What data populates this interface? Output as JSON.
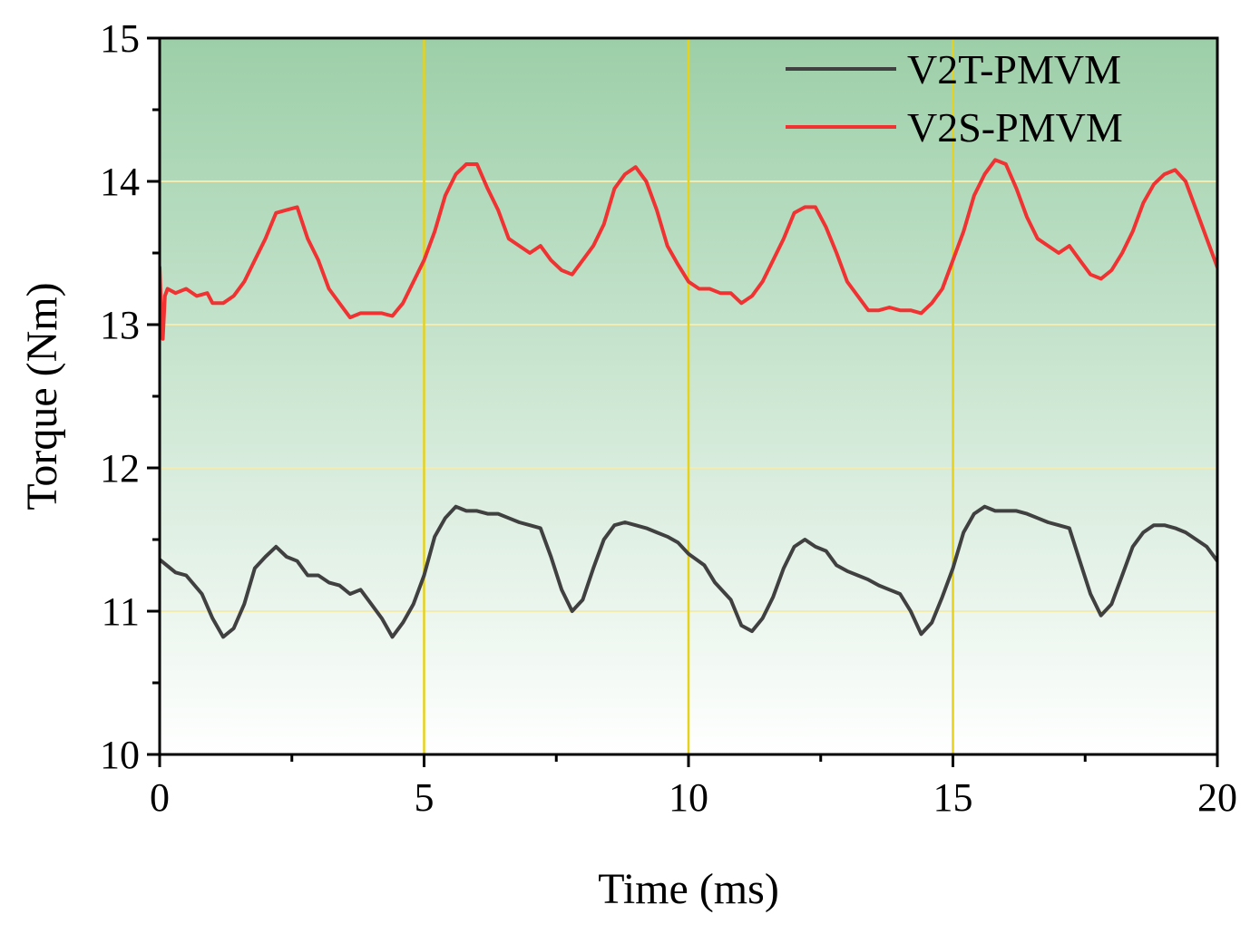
{
  "chart_data": {
    "type": "line",
    "title": "",
    "xlabel": "Time (ms)",
    "ylabel": "Torque (Nm)",
    "xlim": [
      0,
      20
    ],
    "ylim": [
      10,
      15
    ],
    "xticks": [
      0,
      5,
      10,
      15,
      20
    ],
    "yticks": [
      10,
      11,
      12,
      13,
      14,
      15
    ],
    "grid": true,
    "legend": "top-right",
    "colors": {
      "background_top": "#9ccfa8",
      "background_bottom": "#ffffff",
      "gridline_vertical": "#e6d21a",
      "gridline_horizontal": "#f2ecb0"
    },
    "series": [
      {
        "name": "V2T-PMVM",
        "color": "#404040",
        "x": [
          0,
          0.3,
          0.5,
          0.8,
          1.0,
          1.2,
          1.4,
          1.6,
          1.8,
          2.0,
          2.2,
          2.4,
          2.6,
          2.8,
          3.0,
          3.2,
          3.4,
          3.6,
          3.8,
          4.0,
          4.2,
          4.4,
          4.6,
          4.8,
          5.0,
          5.2,
          5.4,
          5.6,
          5.8,
          6.0,
          6.2,
          6.4,
          6.6,
          6.8,
          7.0,
          7.2,
          7.4,
          7.6,
          7.8,
          8.0,
          8.2,
          8.4,
          8.6,
          8.8,
          9.0,
          9.2,
          9.4,
          9.6,
          9.8,
          10.0,
          10.3,
          10.5,
          10.8,
          11.0,
          11.2,
          11.4,
          11.6,
          11.8,
          12.0,
          12.2,
          12.4,
          12.6,
          12.8,
          13.0,
          13.2,
          13.4,
          13.6,
          13.8,
          14.0,
          14.2,
          14.4,
          14.6,
          14.8,
          15.0,
          15.2,
          15.4,
          15.6,
          15.8,
          16.0,
          16.2,
          16.4,
          16.6,
          16.8,
          17.0,
          17.2,
          17.4,
          17.6,
          17.8,
          18.0,
          18.2,
          18.4,
          18.6,
          18.8,
          19.0,
          19.2,
          19.4,
          19.6,
          19.8,
          20.0
        ],
        "values": [
          11.36,
          11.27,
          11.25,
          11.12,
          10.95,
          10.82,
          10.88,
          11.05,
          11.3,
          11.38,
          11.45,
          11.38,
          11.35,
          11.25,
          11.25,
          11.2,
          11.18,
          11.12,
          11.15,
          11.05,
          10.95,
          10.82,
          10.92,
          11.05,
          11.25,
          11.52,
          11.65,
          11.73,
          11.7,
          11.7,
          11.68,
          11.68,
          11.65,
          11.62,
          11.6,
          11.58,
          11.38,
          11.15,
          11.0,
          11.08,
          11.3,
          11.5,
          11.6,
          11.62,
          11.6,
          11.58,
          11.55,
          11.52,
          11.48,
          11.4,
          11.32,
          11.2,
          11.08,
          10.9,
          10.86,
          10.95,
          11.1,
          11.3,
          11.45,
          11.5,
          11.45,
          11.42,
          11.32,
          11.28,
          11.25,
          11.22,
          11.18,
          11.15,
          11.12,
          11.0,
          10.84,
          10.92,
          11.1,
          11.3,
          11.55,
          11.68,
          11.73,
          11.7,
          11.7,
          11.7,
          11.68,
          11.65,
          11.62,
          11.6,
          11.58,
          11.35,
          11.12,
          10.97,
          11.05,
          11.25,
          11.45,
          11.55,
          11.6,
          11.6,
          11.58,
          11.55,
          11.5,
          11.45,
          11.35
        ]
      },
      {
        "name": "V2S-PMVM",
        "color": "#f03232",
        "x": [
          0,
          0.03,
          0.06,
          0.1,
          0.15,
          0.3,
          0.5,
          0.7,
          0.9,
          1.0,
          1.2,
          1.4,
          1.6,
          1.8,
          2.0,
          2.2,
          2.4,
          2.6,
          2.8,
          3.0,
          3.2,
          3.4,
          3.6,
          3.8,
          4.0,
          4.2,
          4.4,
          4.6,
          4.8,
          5.0,
          5.2,
          5.4,
          5.6,
          5.8,
          6.0,
          6.2,
          6.4,
          6.6,
          6.8,
          7.0,
          7.2,
          7.4,
          7.6,
          7.8,
          8.0,
          8.2,
          8.4,
          8.6,
          8.8,
          9.0,
          9.2,
          9.4,
          9.6,
          9.8,
          10.0,
          10.2,
          10.4,
          10.6,
          10.8,
          11.0,
          11.2,
          11.4,
          11.6,
          11.8,
          12.0,
          12.2,
          12.4,
          12.6,
          12.8,
          13.0,
          13.2,
          13.4,
          13.6,
          13.8,
          14.0,
          14.2,
          14.4,
          14.6,
          14.8,
          15.0,
          15.2,
          15.4,
          15.6,
          15.8,
          16.0,
          16.2,
          16.4,
          16.6,
          16.8,
          17.0,
          17.2,
          17.4,
          17.6,
          17.8,
          18.0,
          18.2,
          18.4,
          18.6,
          18.8,
          19.0,
          19.2,
          19.4,
          19.6,
          19.8,
          20.0
        ],
        "values": [
          13.4,
          13.1,
          12.9,
          13.2,
          13.25,
          13.22,
          13.25,
          13.2,
          13.22,
          13.15,
          13.15,
          13.2,
          13.3,
          13.45,
          13.6,
          13.78,
          13.8,
          13.82,
          13.6,
          13.45,
          13.25,
          13.15,
          13.05,
          13.08,
          13.08,
          13.08,
          13.06,
          13.15,
          13.3,
          13.45,
          13.65,
          13.9,
          14.05,
          14.12,
          14.12,
          13.95,
          13.8,
          13.6,
          13.55,
          13.5,
          13.55,
          13.45,
          13.38,
          13.35,
          13.45,
          13.55,
          13.7,
          13.95,
          14.05,
          14.1,
          14.0,
          13.8,
          13.55,
          13.42,
          13.3,
          13.25,
          13.25,
          13.22,
          13.22,
          13.15,
          13.2,
          13.3,
          13.45,
          13.6,
          13.78,
          13.82,
          13.82,
          13.68,
          13.5,
          13.3,
          13.2,
          13.1,
          13.1,
          13.12,
          13.1,
          13.1,
          13.08,
          13.15,
          13.25,
          13.45,
          13.65,
          13.9,
          14.05,
          14.15,
          14.12,
          13.95,
          13.75,
          13.6,
          13.55,
          13.5,
          13.55,
          13.45,
          13.35,
          13.32,
          13.38,
          13.5,
          13.65,
          13.85,
          13.98,
          14.05,
          14.08,
          14.0,
          13.8,
          13.6,
          13.4
        ]
      }
    ]
  }
}
